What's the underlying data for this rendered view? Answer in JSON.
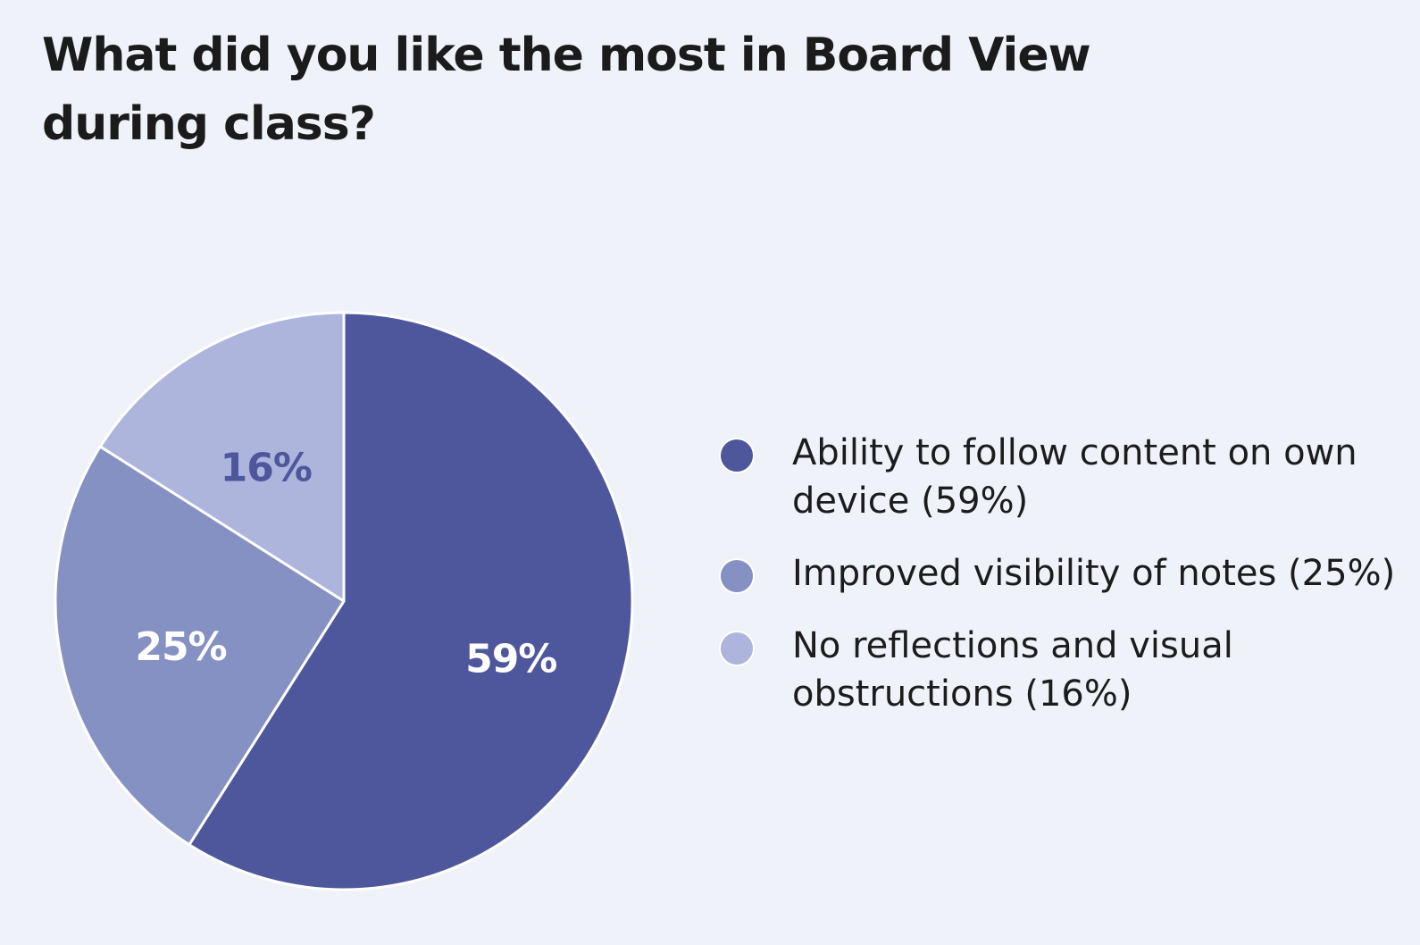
{
  "chart_data": {
    "type": "pie",
    "title": "What did you like the most in Board View during class?",
    "slices": [
      {
        "label": "Ability to follow content on own device",
        "legend": "Ability to follow content on own device (59%)",
        "value": 59,
        "display": "59%",
        "color": "#4e579b",
        "label_color": "#ffffff"
      },
      {
        "label": "Improved visibility of notes",
        "legend": "Improved visibility of notes (25%)",
        "value": 25,
        "display": "25%",
        "color": "#8591c3",
        "label_color": "#ffffff"
      },
      {
        "label": "No reflections and visual obstructions",
        "legend": "No reflections and visual obstructions (16%)",
        "value": 16,
        "display": "16%",
        "color": "#adb5dc",
        "label_color": "#4e579b"
      }
    ],
    "start_angle": "12 o'clock",
    "direction": "clockwise",
    "legend_position": "right"
  }
}
